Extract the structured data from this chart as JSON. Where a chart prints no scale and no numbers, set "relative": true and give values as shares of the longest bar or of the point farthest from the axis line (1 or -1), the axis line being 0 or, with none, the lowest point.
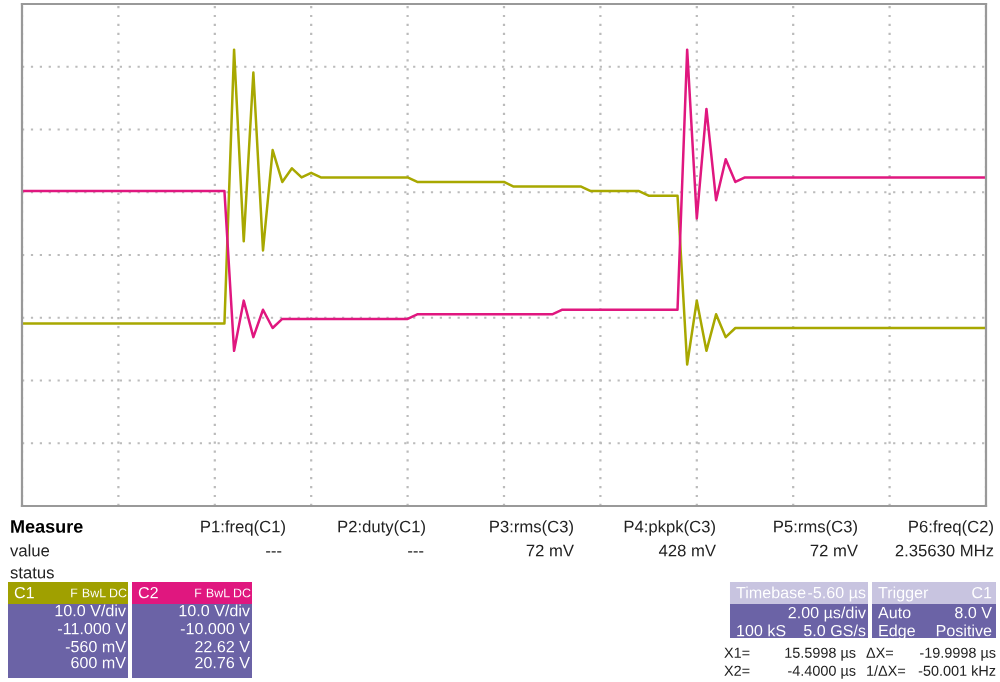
{
  "chart_data": {
    "type": "line",
    "relative": true,
    "grid": true,
    "categories": [
      null,
      null,
      null,
      null,
      null,
      null,
      null,
      null,
      null,
      null,
      null,
      null,
      null,
      null,
      null,
      null,
      null,
      null,
      null,
      null,
      null,
      null,
      null,
      null,
      null,
      null,
      null,
      null,
      null,
      null,
      null,
      null,
      null,
      null,
      null,
      null,
      null,
      null,
      null,
      null,
      null,
      null,
      null,
      null,
      null,
      null,
      null,
      null,
      null,
      null,
      null,
      null,
      null,
      null,
      null,
      null,
      null,
      null,
      null,
      null,
      null,
      null,
      null,
      null,
      null,
      null,
      null,
      null,
      null,
      null,
      null,
      null,
      null,
      null,
      null,
      null,
      null,
      null,
      null,
      null,
      null,
      null,
      null,
      null,
      null,
      null,
      null,
      null,
      null,
      null,
      null,
      null,
      null,
      null,
      null,
      null,
      null,
      null,
      null,
      null,
      null
    ],
    "series": [
      {
        "color": "#a8a800",
        "values": [
          0.4,
          0.4,
          0.4,
          0.4,
          0.4,
          0.4,
          0.4,
          0.4,
          0.4,
          0.4,
          0.4,
          0.4,
          0.4,
          0.4,
          0.4,
          0.4,
          0.4,
          0.4,
          0.4,
          0.4,
          0.4,
          0.4,
          1.0,
          0.58,
          0.95,
          0.56,
          0.78,
          0.71,
          0.74,
          0.72,
          0.73,
          0.72,
          0.72,
          0.72,
          0.72,
          0.72,
          0.72,
          0.72,
          0.72,
          0.72,
          0.72,
          0.71,
          0.71,
          0.71,
          0.71,
          0.71,
          0.71,
          0.71,
          0.71,
          0.71,
          0.71,
          0.7,
          0.7,
          0.7,
          0.7,
          0.7,
          0.7,
          0.7,
          0.7,
          0.69,
          0.69,
          0.69,
          0.69,
          0.69,
          0.69,
          0.68,
          0.68,
          0.68,
          0.68,
          0.31,
          0.45,
          0.34,
          0.42,
          0.37,
          0.39,
          0.39,
          0.39,
          0.39,
          0.39,
          0.39,
          0.39,
          0.39,
          0.39,
          0.39,
          0.39,
          0.39,
          0.39,
          0.39,
          0.39,
          0.39,
          0.39,
          0.39,
          0.39,
          0.39,
          0.39,
          0.39,
          0.39,
          0.39,
          0.39,
          0.39,
          0.39
        ]
      },
      {
        "color": "#e0177f",
        "values": [
          0.69,
          0.69,
          0.69,
          0.69,
          0.69,
          0.69,
          0.69,
          0.69,
          0.69,
          0.69,
          0.69,
          0.69,
          0.69,
          0.69,
          0.69,
          0.69,
          0.69,
          0.69,
          0.69,
          0.69,
          0.69,
          0.69,
          0.34,
          0.45,
          0.37,
          0.43,
          0.39,
          0.41,
          0.41,
          0.41,
          0.41,
          0.41,
          0.41,
          0.41,
          0.41,
          0.41,
          0.41,
          0.41,
          0.41,
          0.41,
          0.41,
          0.42,
          0.42,
          0.42,
          0.42,
          0.42,
          0.42,
          0.42,
          0.42,
          0.42,
          0.42,
          0.42,
          0.42,
          0.42,
          0.42,
          0.42,
          0.43,
          0.43,
          0.43,
          0.43,
          0.43,
          0.43,
          0.43,
          0.43,
          0.43,
          0.43,
          0.43,
          0.43,
          0.43,
          1.0,
          0.63,
          0.87,
          0.67,
          0.76,
          0.71,
          0.72,
          0.72,
          0.72,
          0.72,
          0.72,
          0.72,
          0.72,
          0.72,
          0.72,
          0.72,
          0.72,
          0.72,
          0.72,
          0.72,
          0.72,
          0.72,
          0.72,
          0.72,
          0.72,
          0.72,
          0.72,
          0.72,
          0.72,
          0.72,
          0.72,
          0.72
        ]
      }
    ],
    "annotations": [
      "Measure",
      "value",
      "status",
      "P1:freq(C1)",
      "---",
      "P2:duty(C1)",
      "---",
      "P3:rms(C3)",
      "72 mV",
      "P4:pkpk(C3)",
      "428 mV",
      "P5:rms(C3)",
      "72 mV",
      "P6:freq(C2)",
      "2.35630 MHz",
      "C1",
      "F",
      "BwL",
      "DC",
      "10.0 V/div",
      "-11.000 V",
      "-560 mV",
      "600 mV",
      "C2",
      "F",
      "BwL",
      "DC",
      "10.0 V/div",
      "-10.000 V",
      "22.62 V",
      "20.76 V",
      "Timebase",
      "-5.60 µs",
      "2.00 µs/div",
      "100 kS",
      "5.0 GS/s",
      "Trigger",
      "C1",
      "Auto",
      "8.0 V",
      "Edge",
      "Positive",
      "X1=",
      "15.5998 µs",
      "ΔX=",
      "-19.9998 µs",
      "X2=",
      "-4.4000 µs",
      "1/ΔX=",
      "-50.001 kHz"
    ]
  }
}
